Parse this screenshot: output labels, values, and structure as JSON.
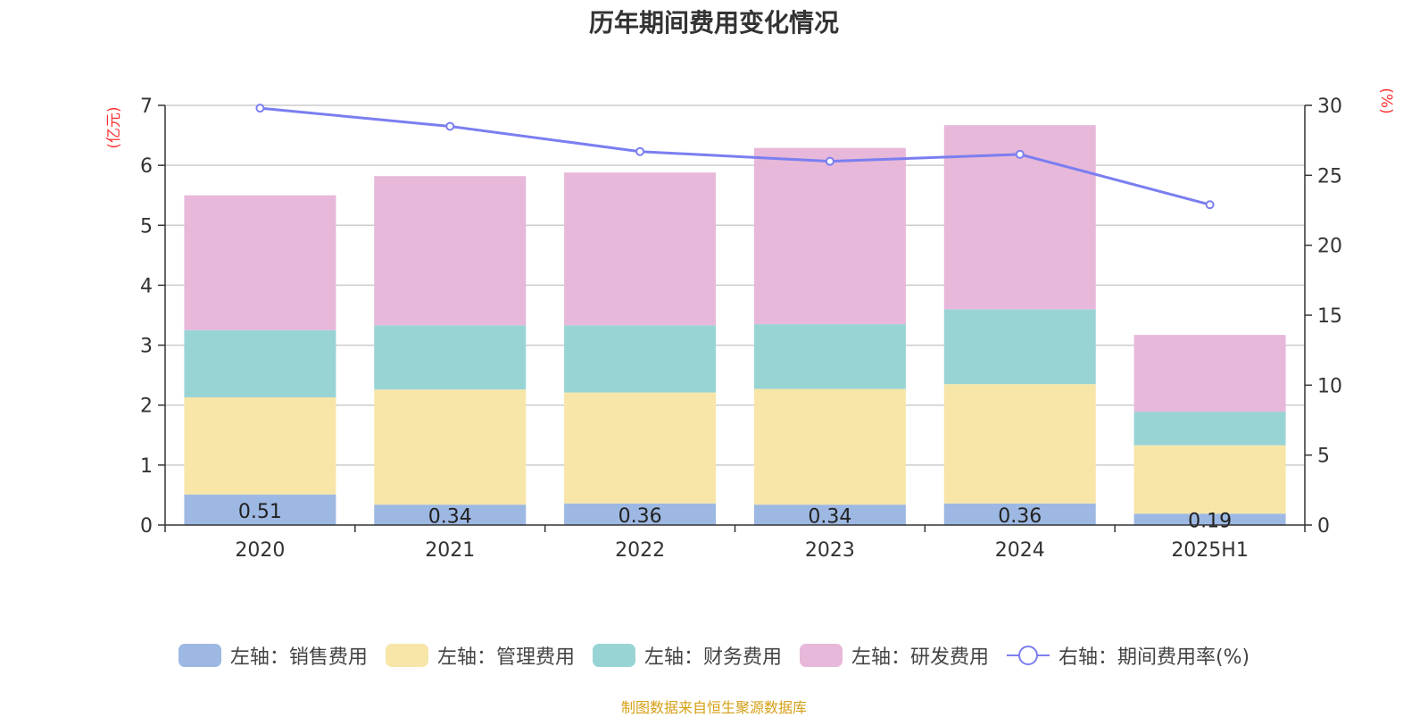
{
  "chart_data": {
    "type": "bar",
    "stacked": true,
    "title": "历年期间费用变化情况",
    "categories": [
      "2020",
      "2021",
      "2022",
      "2023",
      "2024",
      "2025H1"
    ],
    "left_axis": {
      "unit_label": "(亿元)",
      "ylim": [
        0,
        7
      ],
      "ticks": [
        "0",
        "1",
        "2",
        "3",
        "4",
        "5",
        "6",
        "7"
      ]
    },
    "right_axis": {
      "unit_label": "(%)",
      "ylim": [
        0,
        30
      ],
      "ticks": [
        "0",
        "5",
        "10",
        "15",
        "20",
        "25",
        "30"
      ]
    },
    "series": [
      {
        "name": "左轴：销售费用",
        "axis": "left",
        "type": "bar",
        "color": "#9db8e2",
        "values": [
          0.51,
          0.34,
          0.36,
          0.34,
          0.36,
          0.19
        ],
        "data_labels": [
          "0.51",
          "0.34",
          "0.36",
          "0.34",
          "0.36",
          "0.19"
        ]
      },
      {
        "name": "左轴：管理费用",
        "axis": "left",
        "type": "bar",
        "color": "#f7e6a8",
        "values": [
          1.62,
          1.92,
          1.85,
          1.93,
          1.99,
          1.14
        ]
      },
      {
        "name": "左轴：财务费用",
        "axis": "left",
        "type": "bar",
        "color": "#99d4d5",
        "values": [
          1.12,
          1.07,
          1.12,
          1.08,
          1.25,
          0.56
        ]
      },
      {
        "name": "左轴：研发费用",
        "axis": "left",
        "type": "bar",
        "color": "#e7b8d9",
        "values": [
          2.25,
          2.49,
          2.55,
          2.94,
          3.07,
          1.28
        ]
      },
      {
        "name": "右轴：期间费用率(%)",
        "axis": "right",
        "type": "line",
        "color": "#7b7ef0",
        "values": [
          29.8,
          28.5,
          26.7,
          26.0,
          26.5,
          22.9
        ]
      }
    ],
    "grid": true,
    "legend_position": "bottom"
  },
  "footer": {
    "source_note": "制图数据来自恒生聚源数据库"
  }
}
